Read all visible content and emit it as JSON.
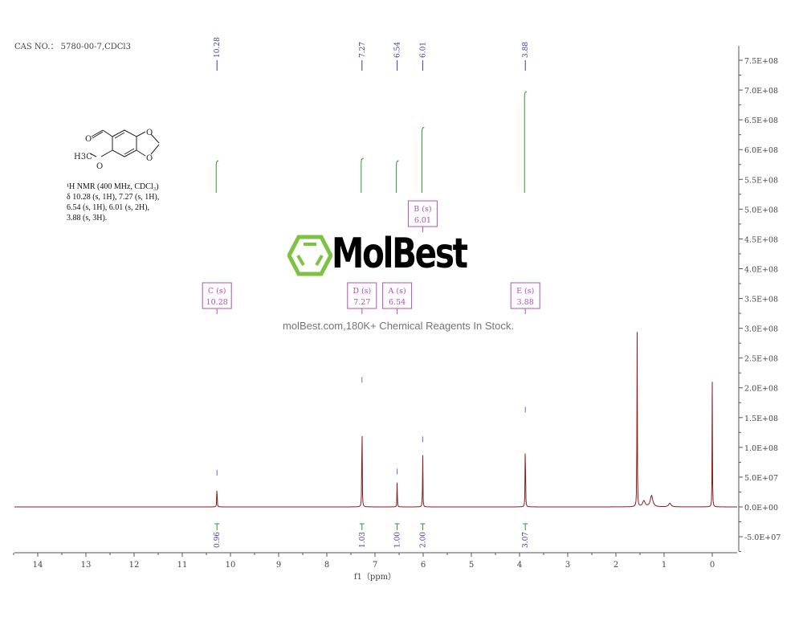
{
  "header": {
    "cas": "CAS NO.： 5780-00-7,CDCl3"
  },
  "description": {
    "line1": "¹H NMR (400 MHz, CDCl₃)",
    "line2": "δ 10.28 (s, 1H), 7.27 (s, 1H),",
    "line3": "6.54 (s, 1H), 6.01 (s, 2H),",
    "line4": "3.88 (s, 3H)."
  },
  "molecule": {
    "labels": [
      "O",
      "O",
      "O",
      "H3C",
      "O"
    ]
  },
  "watermark": {
    "logo": "MolBest",
    "tagline": "molBest.com,180K+ Chemical Reagents In Stock.",
    "logo_color": "#7dc242"
  },
  "chart_data": {
    "type": "line",
    "title": "",
    "xlabel": "f1（ppm）",
    "ylabel": "",
    "xlim": [
      14.5,
      -0.5
    ],
    "ylim": [
      -75000000.0,
      750000000.0
    ],
    "x_ticks": [
      "14",
      "13",
      "12",
      "11",
      "10",
      "9",
      "8",
      "7",
      "6",
      "5",
      "4",
      "3",
      "2",
      "1",
      "0"
    ],
    "y_ticks": [
      "7.5E+08",
      "7.0E+08",
      "6.5E+08",
      "6.0E+08",
      "5.5E+08",
      "5.0E+08",
      "4.5E+08",
      "4.0E+08",
      "3.5E+08",
      "3.0E+08",
      "2.5E+08",
      "2.0E+08",
      "1.5E+08",
      "1.0E+08",
      "5.0E+07",
      "0.0E+00",
      "-5.0E+07"
    ],
    "y_tick_values": [
      750000000.0,
      700000000.0,
      650000000.0,
      600000000.0,
      550000000.0,
      500000000.0,
      450000000.0,
      400000000.0,
      350000000.0,
      300000000.0,
      250000000.0,
      200000000.0,
      150000000.0,
      100000000.0,
      50000000.0,
      0,
      -50000000.0
    ],
    "peaks": [
      {
        "ppm": 10.28,
        "height": 46000000.0
      },
      {
        "ppm": 7.27,
        "height": 202000000.0
      },
      {
        "ppm": 6.54,
        "height": 48000000.0
      },
      {
        "ppm": 6.01,
        "height": 102000000.0
      },
      {
        "ppm": 3.88,
        "height": 152000000.0
      },
      {
        "ppm": 1.56,
        "height": 344000000.0
      },
      {
        "ppm": 1.42,
        "height": 10000000.0
      },
      {
        "ppm": 1.26,
        "height": 19000000.0
      },
      {
        "ppm": 0.88,
        "height": 6000000.0
      },
      {
        "ppm": 0.0,
        "height": 210000000.0
      }
    ],
    "peak_labels": [
      "10.28",
      "7.27",
      "6.54",
      "6.01",
      "3.88"
    ],
    "peak_label_ppm": [
      10.28,
      7.27,
      6.54,
      6.01,
      3.88
    ],
    "integrals": [
      {
        "ppm": 10.28,
        "value": "0.96",
        "curve_height": 54000000.0
      },
      {
        "ppm": 7.27,
        "value": "1.03",
        "curve_height": 58000000.0
      },
      {
        "ppm": 6.54,
        "value": "1.00",
        "curve_height": 54000000.0
      },
      {
        "ppm": 6.01,
        "value": "2.00",
        "curve_height": 110000000.0
      },
      {
        "ppm": 3.88,
        "value": "3.07",
        "curve_height": 170000000.0
      }
    ],
    "multiplets": [
      {
        "ppm": 10.28,
        "letter": "C (s)",
        "shift": "10.28"
      },
      {
        "ppm": 7.27,
        "letter": "D (s)",
        "shift": "7.27"
      },
      {
        "ppm": 6.54,
        "letter": "A (s)",
        "shift": "6.54"
      },
      {
        "ppm": 6.01,
        "letter": "B (s)",
        "shift": "6.01"
      },
      {
        "ppm": 3.88,
        "letter": "E (s)",
        "shift": "3.88"
      }
    ],
    "colors": {
      "spectrum": "#8b1a1a",
      "peak_label": "#3a3a9a",
      "integral": "#2a9a2a",
      "multiplet": "#b050b0",
      "axis": "#555555"
    }
  }
}
